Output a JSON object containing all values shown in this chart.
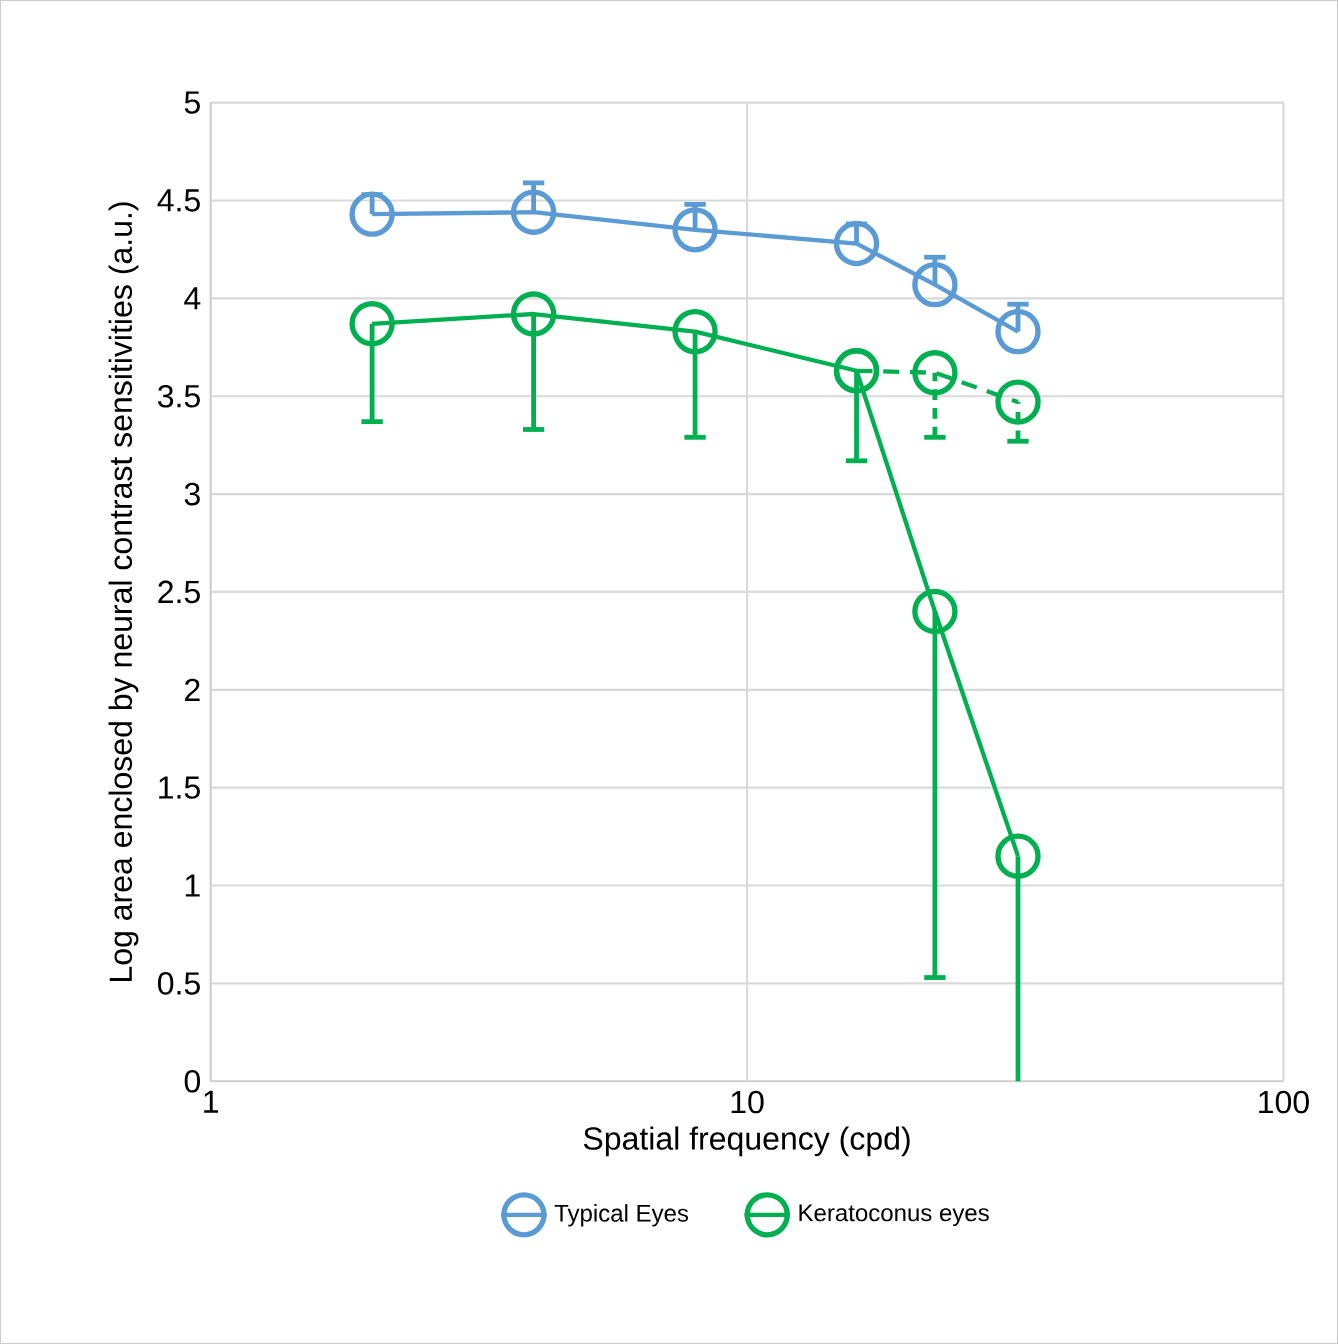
{
  "chart_data": {
    "type": "line",
    "xlabel": "Spatial frequency (cpd)",
    "ylabel": "Log area enclosed by neural contrast sensitivities (a.u.)",
    "log": "x",
    "xlim": [
      1,
      100
    ],
    "xticks": [
      1,
      10,
      100
    ],
    "ylim": [
      0,
      5
    ],
    "yticks": [
      0,
      0.5,
      1,
      1.5,
      2,
      2.5,
      3,
      3.5,
      4,
      4.5,
      5
    ],
    "grid": true,
    "legend": "bottom",
    "marker": "circle",
    "series": [
      {
        "name": "Typical Eyes",
        "color": "#5b9bd5",
        "x": [
          2,
          4,
          8,
          16,
          22.4,
          32
        ],
        "values": [
          4.43,
          4.44,
          4.35,
          4.28,
          4.07,
          3.83
        ],
        "errors": [
          [
            4.43,
            4.53
          ],
          [
            4.44,
            4.59
          ],
          [
            4.35,
            4.48
          ],
          [
            4.28,
            4.38
          ],
          [
            4.07,
            4.21
          ],
          [
            3.83,
            3.97
          ]
        ]
      },
      {
        "name": "Keratoconus eyes",
        "color": "#00b050",
        "x": [
          2,
          4,
          8,
          16,
          22.4,
          32
        ],
        "values": [
          3.87,
          3.92,
          3.83,
          3.63,
          2.4,
          1.15
        ],
        "errors": [
          [
            3.37,
            3.87
          ],
          [
            3.33,
            3.92
          ],
          [
            3.29,
            3.83
          ],
          [
            3.17,
            3.63
          ],
          [
            0.53,
            2.4
          ],
          [
            0,
            1.15
          ]
        ]
      },
      {
        "color": "#00b050",
        "line_style": "dashed",
        "x": [
          16,
          22.4,
          32
        ],
        "values": [
          3.63,
          3.62,
          3.47
        ],
        "errors": [
          null,
          [
            3.29,
            3.62
          ],
          [
            3.27,
            3.47
          ]
        ]
      }
    ]
  }
}
